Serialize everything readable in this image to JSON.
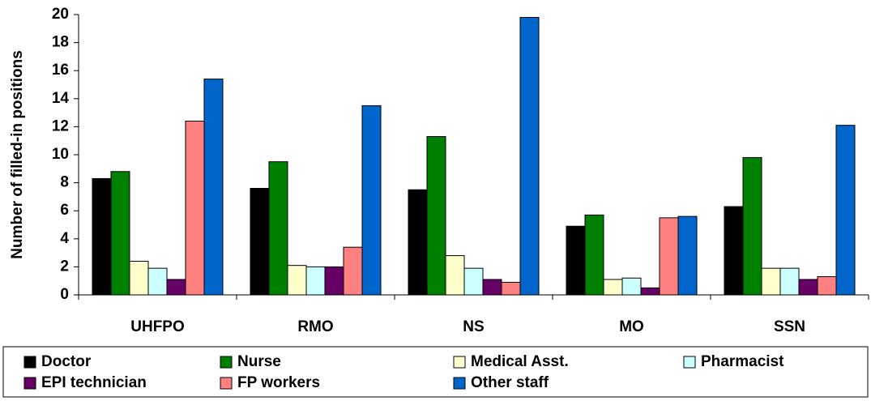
{
  "chart_data": {
    "type": "bar",
    "y_label": "Number of filled-in positions",
    "categories": [
      "UHFPO",
      "RMO",
      "NS",
      "MO",
      "SSN"
    ],
    "series": [
      {
        "name": "Doctor",
        "color": "#000000",
        "values": [
          8.3,
          7.6,
          7.5,
          4.9,
          6.3
        ]
      },
      {
        "name": "Nurse",
        "color": "#008000",
        "values": [
          8.8,
          9.5,
          11.3,
          5.7,
          9.8
        ]
      },
      {
        "name": "Medical Asst.",
        "color": "#ffffcc",
        "values": [
          2.4,
          2.1,
          2.8,
          1.1,
          1.9
        ]
      },
      {
        "name": "Pharmacist",
        "color": "#ccffff",
        "values": [
          1.9,
          2.0,
          1.9,
          1.2,
          1.9
        ]
      },
      {
        "name": "EPI technician",
        "color": "#660066",
        "values": [
          1.1,
          2.0,
          1.1,
          0.5,
          1.1
        ]
      },
      {
        "name": "FP workers",
        "color": "#ff8080",
        "values": [
          12.4,
          3.4,
          0.9,
          5.5,
          1.3
        ]
      },
      {
        "name": "Other staff",
        "color": "#0066cc",
        "values": [
          15.4,
          13.5,
          19.8,
          5.6,
          12.1
        ]
      }
    ],
    "ylim": [
      0,
      20
    ],
    "yticks": [
      0,
      2,
      4,
      6,
      8,
      10,
      12,
      14,
      16,
      18,
      20
    ],
    "grid": false,
    "legend": "bottom"
  }
}
